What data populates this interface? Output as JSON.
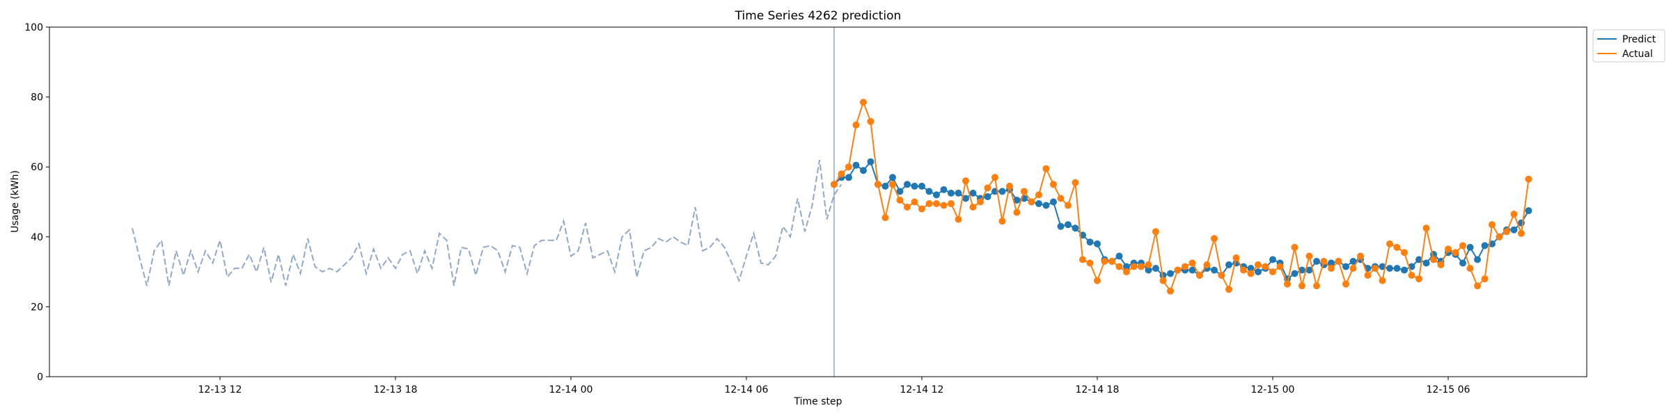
{
  "chart_data": {
    "type": "line",
    "title": "Time Series 4262 prediction",
    "xlabel": "Time step",
    "ylabel": "Usage (kWh)",
    "ylim": [
      0,
      100
    ],
    "yticks": [
      0,
      20,
      40,
      60,
      80,
      100
    ],
    "xticks": [
      "12-13 12",
      "12-13 18",
      "12-14 00",
      "12-14 06",
      "12-14 12",
      "12-14 18",
      "12-15 00",
      "12-15 06"
    ],
    "grid": false,
    "legend_position": "outside-top-right",
    "colors": {
      "history": "#8fa8c8",
      "predict": "#1f77b4",
      "actual": "#ff7f0e",
      "split_line": "#8fa8c8"
    },
    "history": {
      "x_start": "12-13 09:00",
      "x_step_minutes": 15,
      "values": [
        42.5,
        34,
        26,
        36,
        39,
        26,
        36,
        29,
        36,
        30,
        36,
        32.5,
        39,
        28.5,
        31,
        31,
        35,
        30,
        37,
        27,
        35,
        26,
        35,
        29.5,
        39.5,
        31.5,
        30,
        31,
        30,
        32,
        34,
        38,
        29.5,
        36.5,
        31,
        34,
        31,
        35,
        36,
        29.5,
        36,
        31,
        41,
        39,
        26,
        37,
        36.5,
        29,
        37,
        37.5,
        36,
        30,
        37.5,
        37,
        29.5,
        37.5,
        39,
        39,
        39,
        44.5,
        34.5,
        36,
        44,
        34,
        35,
        36,
        30,
        40,
        42,
        28.5,
        36,
        37,
        39.5,
        38.5,
        40,
        38.5,
        37.5,
        48.5,
        36,
        37,
        39.5,
        37,
        32.5,
        27.5,
        34.5,
        41,
        32.5,
        32,
        34.5,
        43,
        40,
        51,
        41.5,
        49,
        62,
        45,
        52,
        55
      ]
    },
    "series": [
      {
        "name": "Predict",
        "x_start": "12-14 09:00",
        "x_step_minutes": 15,
        "values": [
          55,
          57,
          57,
          60.5,
          59,
          61.5,
          55,
          54.5,
          57,
          53,
          55,
          54.5,
          54.5,
          53,
          52,
          53.5,
          52.5,
          52.5,
          51,
          52.5,
          51,
          51.5,
          53,
          53,
          53.5,
          50.5,
          51,
          50,
          49.5,
          49,
          50,
          43,
          43.5,
          42.5,
          40.5,
          38.5,
          38,
          33.5,
          33,
          34.5,
          31.5,
          32.5,
          32.5,
          30.5,
          31,
          29,
          29.5,
          30.5,
          30.5,
          30.5,
          29,
          31,
          30.5,
          29,
          32,
          32.5,
          31.5,
          31,
          30,
          31,
          33.5,
          32.5,
          28,
          29.5,
          30.5,
          30.5,
          33,
          32,
          32.5,
          33,
          31.5,
          33,
          33.5,
          31,
          31.5,
          31.5,
          31,
          31,
          30.5,
          31.5,
          33.5,
          32.5,
          35,
          33,
          35.5,
          35,
          32.5,
          37,
          33.5,
          37.5,
          38,
          40,
          42,
          42,
          44,
          47.5
        ]
      },
      {
        "name": "Actual",
        "x_start": "12-14 09:00",
        "x_step_minutes": 15,
        "values": [
          55,
          58,
          60,
          72,
          78.5,
          73,
          55,
          45.5,
          55,
          50.5,
          48.5,
          50,
          48,
          49.5,
          49.5,
          49,
          49.5,
          45,
          56,
          48.5,
          50,
          54,
          57,
          44.5,
          54.5,
          47,
          53,
          50,
          52,
          59.5,
          55,
          51,
          49,
          55.5,
          33.5,
          32.5,
          27.5,
          33,
          33,
          31.5,
          30,
          31.5,
          31.5,
          32,
          41.5,
          27.5,
          24.5,
          30.5,
          31.5,
          32.5,
          29,
          32,
          39.5,
          29,
          25,
          34,
          30.5,
          29.5,
          32,
          31.5,
          30,
          31.5,
          26.5,
          37,
          26,
          34.5,
          26,
          33,
          31,
          33,
          26.5,
          31,
          34.5,
          29,
          31,
          27.5,
          38,
          37,
          35.5,
          29,
          28,
          42.5,
          33.5,
          32,
          36.5,
          35.5,
          37.5,
          31,
          26,
          28,
          43.5,
          40,
          41.5,
          46.5,
          41,
          56.5
        ]
      }
    ]
  }
}
